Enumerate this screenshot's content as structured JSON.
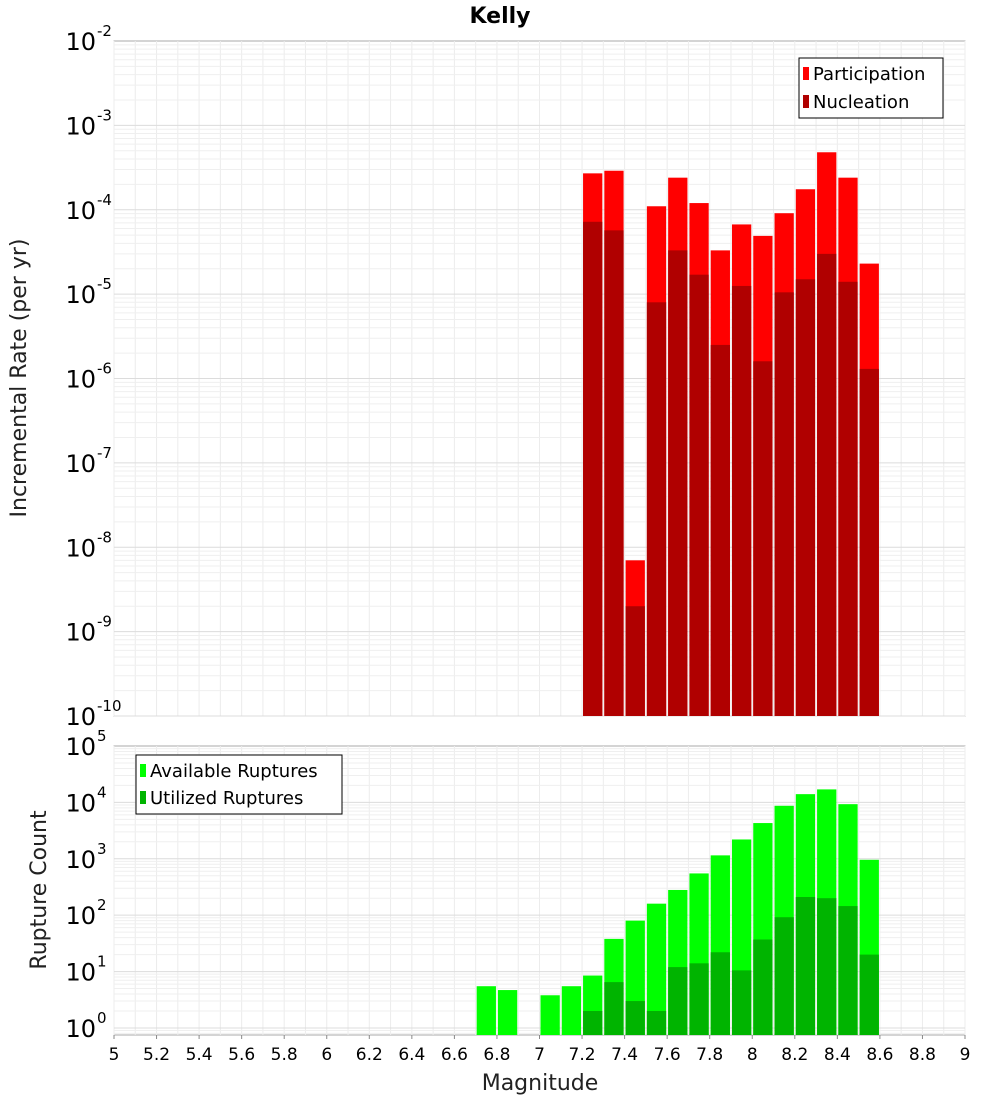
{
  "chart_data": [
    {
      "type": "bar",
      "title": "Kelly",
      "xlabel": "",
      "ylabel": "Incremental Rate (per yr)",
      "yscale": "log",
      "ylim": [
        1e-10,
        0.01
      ],
      "xlim": [
        5,
        9
      ],
      "grid": true,
      "legend_position": "top-right",
      "x": [
        7.25,
        7.35,
        7.45,
        7.55,
        7.65,
        7.75,
        7.85,
        7.95,
        8.05,
        8.15,
        8.25,
        8.35,
        8.45,
        8.55
      ],
      "series": [
        {
          "name": "Participation",
          "color": "#ff0000",
          "values": [
            0.00027,
            0.00029,
            7e-09,
            0.00011,
            0.00024,
            0.00012,
            3.3e-05,
            6.7e-05,
            4.9e-05,
            9.1e-05,
            0.000175,
            0.00048,
            0.00024,
            2.3e-05
          ]
        },
        {
          "name": "Nucleation",
          "color": "#b00000",
          "values": [
            7.2e-05,
            5.7e-05,
            2e-09,
            8e-06,
            3.3e-05,
            1.7e-05,
            2.5e-06,
            1.25e-05,
            1.6e-06,
            1.05e-05,
            1.5e-05,
            3e-05,
            1.4e-05,
            1.3e-06
          ]
        }
      ],
      "y_ticks": [
        {
          "base": "10",
          "exp": "-2"
        },
        {
          "base": "10",
          "exp": "-3"
        },
        {
          "base": "10",
          "exp": "-4"
        },
        {
          "base": "10",
          "exp": "-5"
        },
        {
          "base": "10",
          "exp": "-6"
        },
        {
          "base": "10",
          "exp": "-7"
        },
        {
          "base": "10",
          "exp": "-8"
        },
        {
          "base": "10",
          "exp": "-9"
        },
        {
          "base": "10",
          "exp": "-10"
        }
      ]
    },
    {
      "type": "bar",
      "title": "",
      "xlabel": "Magnitude",
      "ylabel": "Rupture Count",
      "yscale": "log",
      "ylim": [
        0.75,
        100000
      ],
      "xlim": [
        5,
        9
      ],
      "grid": true,
      "legend_position": "top-left",
      "x": [
        6.75,
        6.85,
        7.05,
        7.15,
        7.25,
        7.35,
        7.45,
        7.55,
        7.65,
        7.75,
        7.85,
        7.95,
        8.05,
        8.15,
        8.25,
        8.35,
        8.45,
        8.55
      ],
      "series": [
        {
          "name": "Available Ruptures",
          "color": "#00ff00",
          "values": [
            5.5,
            4.7,
            3.8,
            5.5,
            8.5,
            38,
            80,
            160,
            280,
            550,
            1150,
            2200,
            4300,
            8700,
            14000,
            17000,
            9300,
            960
          ]
        },
        {
          "name": "Utilized Ruptures",
          "color": "#00b400",
          "values": [
            null,
            null,
            null,
            null,
            2,
            6.5,
            3,
            2,
            12,
            14,
            22,
            10.5,
            37,
            92,
            210,
            200,
            145,
            20
          ]
        }
      ],
      "y_ticks": [
        {
          "base": "10",
          "exp": "5"
        },
        {
          "base": "10",
          "exp": "4"
        },
        {
          "base": "10",
          "exp": "3"
        },
        {
          "base": "10",
          "exp": "2"
        },
        {
          "base": "10",
          "exp": "1"
        },
        {
          "base": "10",
          "exp": "0"
        }
      ],
      "x_ticks": [
        "5",
        "5.2",
        "5.4",
        "5.6",
        "5.8",
        "6",
        "6.2",
        "6.4",
        "6.6",
        "6.8",
        "7",
        "7.2",
        "7.4",
        "7.6",
        "7.8",
        "8",
        "8.2",
        "8.4",
        "8.6",
        "8.8",
        "9"
      ]
    }
  ]
}
